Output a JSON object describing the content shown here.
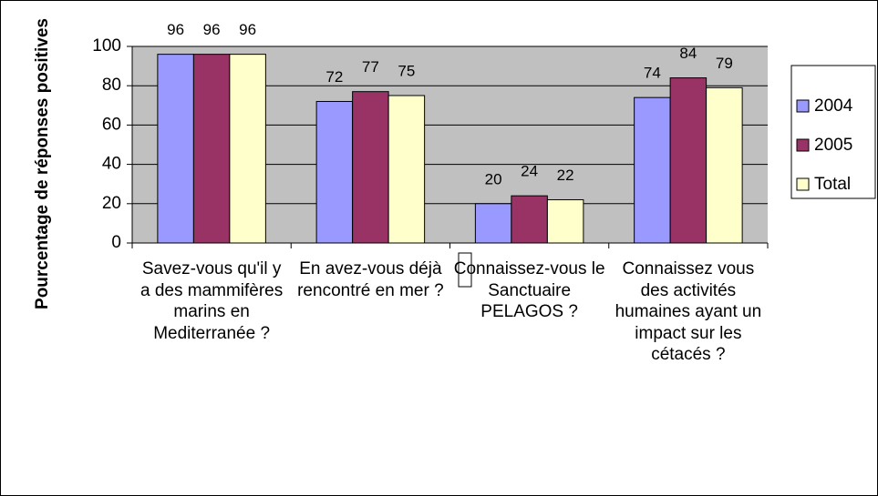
{
  "chart_data": {
    "type": "bar",
    "y_label": "Pourcentage de réponses positives",
    "categories": [
      "Savez-vous qu'il y a des mammifères marins en Mediterranée ?",
      "En avez-vous déjà rencontré en mer ?",
      "Connaissez-vous le Sanctuaire PELAGOS ?",
      "Connaissez vous des activités humaines ayant un impact sur les cétacés ?"
    ],
    "series": [
      {
        "name": "2004",
        "color": "#9999ff",
        "values": [
          96,
          72,
          20,
          74
        ]
      },
      {
        "name": "2005",
        "color": "#993366",
        "values": [
          96,
          77,
          24,
          84
        ]
      },
      {
        "name": "Total",
        "color": "#ffffcc",
        "values": [
          96,
          75,
          22,
          79
        ]
      }
    ],
    "ylim": [
      0,
      100
    ],
    "yticks": [
      0,
      20,
      40,
      60,
      80,
      100
    ],
    "grid": true,
    "legend": "right"
  }
}
